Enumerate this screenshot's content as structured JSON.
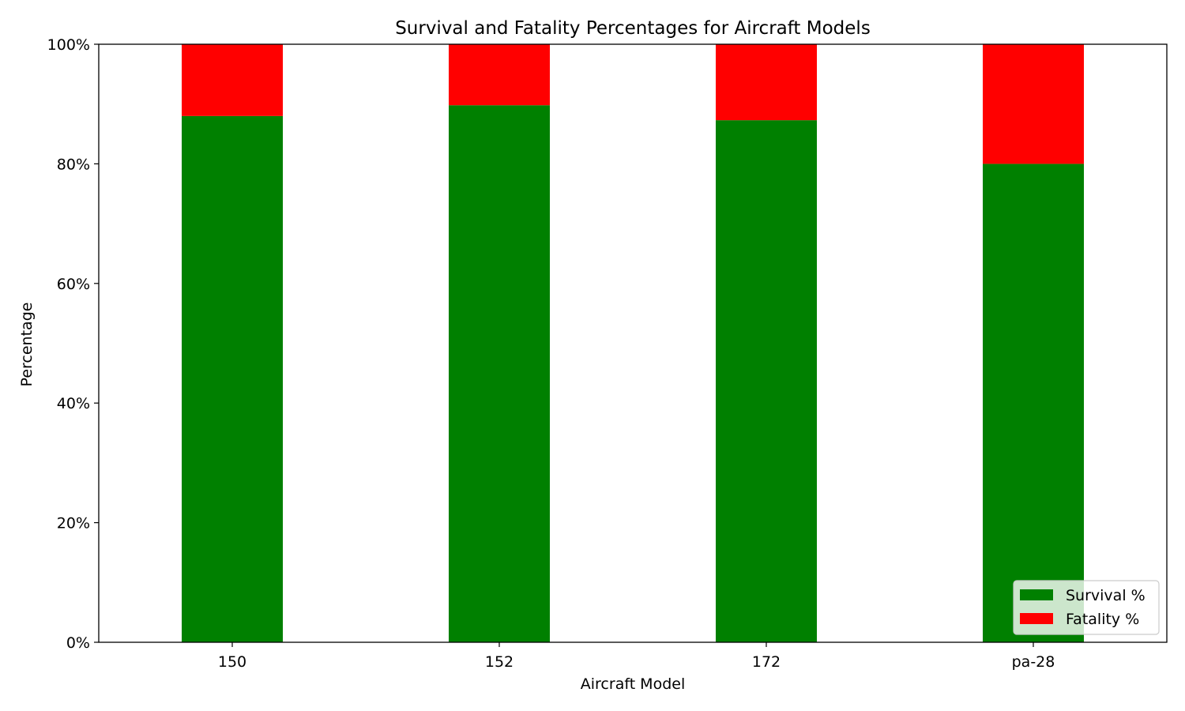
{
  "chart_data": {
    "type": "bar",
    "stacked": true,
    "title": "Survival and Fatality Percentages for Aircraft Models",
    "xlabel": "Aircraft Model",
    "ylabel": "Percentage",
    "categories": [
      "150",
      "152",
      "172",
      "pa-28"
    ],
    "series": [
      {
        "name": "Survival %",
        "color": "#008000",
        "values": [
          88,
          89.8,
          87.3,
          80
        ]
      },
      {
        "name": "Fatality %",
        "color": "#ff0000",
        "values": [
          12,
          10.2,
          12.7,
          20
        ]
      }
    ],
    "ylim": [
      0,
      100
    ],
    "yticks": [
      0,
      20,
      40,
      60,
      80,
      100
    ],
    "ytick_labels": [
      "0%",
      "20%",
      "40%",
      "60%",
      "80%",
      "100%"
    ],
    "grid": false,
    "legend_position": "lower-right"
  }
}
